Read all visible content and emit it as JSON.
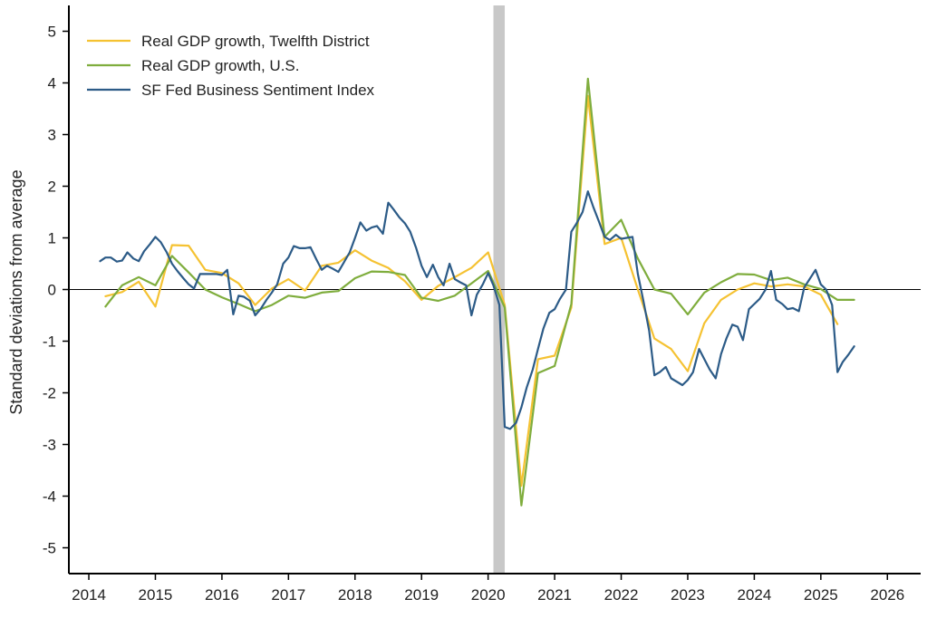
{
  "chart_data": {
    "type": "line",
    "title": "",
    "xlabel": "",
    "ylabel": "Standard deviations from average",
    "xlim": [
      2013.7,
      2026.5
    ],
    "ylim": [
      -5.5,
      5.5
    ],
    "x_ticks": [
      2014,
      2015,
      2016,
      2017,
      2018,
      2019,
      2020,
      2021,
      2022,
      2023,
      2024,
      2025,
      2026
    ],
    "y_ticks": [
      5,
      4,
      3,
      2,
      1,
      0,
      -1,
      -2,
      -3,
      -4,
      -5
    ],
    "zero_line": true,
    "grid": false,
    "legend_position": "top-left",
    "recession_band": {
      "x0": 2020.08,
      "x1": 2020.25,
      "color": "#c8c8c8"
    },
    "series": [
      {
        "name": "Real GDP growth, Twelfth District",
        "color": "#f5c232",
        "points": [
          [
            2014.25,
            -0.13
          ],
          [
            2014.5,
            -0.05
          ],
          [
            2014.75,
            0.15
          ],
          [
            2015.0,
            -0.33
          ],
          [
            2015.25,
            0.86
          ],
          [
            2015.5,
            0.85
          ],
          [
            2015.75,
            0.38
          ],
          [
            2016.0,
            0.32
          ],
          [
            2016.25,
            0.12
          ],
          [
            2016.5,
            -0.3
          ],
          [
            2016.75,
            0.02
          ],
          [
            2017.0,
            0.2
          ],
          [
            2017.25,
            -0.02
          ],
          [
            2017.5,
            0.46
          ],
          [
            2017.75,
            0.52
          ],
          [
            2018.0,
            0.76
          ],
          [
            2018.25,
            0.56
          ],
          [
            2018.5,
            0.42
          ],
          [
            2018.75,
            0.16
          ],
          [
            2019.0,
            -0.2
          ],
          [
            2019.25,
            0.07
          ],
          [
            2019.5,
            0.24
          ],
          [
            2019.75,
            0.42
          ],
          [
            2020.0,
            0.72
          ],
          [
            2020.25,
            -0.3
          ],
          [
            2020.5,
            -3.8
          ],
          [
            2020.75,
            -1.35
          ],
          [
            2021.0,
            -1.28
          ],
          [
            2021.25,
            -0.35
          ],
          [
            2021.5,
            3.75
          ],
          [
            2021.75,
            0.88
          ],
          [
            2022.0,
            1.0
          ],
          [
            2022.25,
            0.0
          ],
          [
            2022.5,
            -0.95
          ],
          [
            2022.75,
            -1.15
          ],
          [
            2023.0,
            -1.58
          ],
          [
            2023.25,
            -0.65
          ],
          [
            2023.5,
            -0.2
          ],
          [
            2023.75,
            0.0
          ],
          [
            2024.0,
            0.12
          ],
          [
            2024.25,
            0.06
          ],
          [
            2024.5,
            0.1
          ],
          [
            2024.75,
            0.06
          ],
          [
            2025.0,
            -0.1
          ],
          [
            2025.25,
            -0.67
          ]
        ]
      },
      {
        "name": "Real GDP growth, U.S.",
        "color": "#7fad3d",
        "points": [
          [
            2014.25,
            -0.33
          ],
          [
            2014.5,
            0.08
          ],
          [
            2014.75,
            0.24
          ],
          [
            2015.0,
            0.08
          ],
          [
            2015.25,
            0.65
          ],
          [
            2015.5,
            0.33
          ],
          [
            2015.75,
            0.0
          ],
          [
            2016.0,
            -0.15
          ],
          [
            2016.25,
            -0.28
          ],
          [
            2016.5,
            -0.42
          ],
          [
            2016.75,
            -0.3
          ],
          [
            2017.0,
            -0.12
          ],
          [
            2017.25,
            -0.16
          ],
          [
            2017.5,
            -0.06
          ],
          [
            2017.75,
            -0.03
          ],
          [
            2018.0,
            0.22
          ],
          [
            2018.25,
            0.35
          ],
          [
            2018.5,
            0.34
          ],
          [
            2018.75,
            0.28
          ],
          [
            2019.0,
            -0.16
          ],
          [
            2019.25,
            -0.22
          ],
          [
            2019.5,
            -0.12
          ],
          [
            2019.75,
            0.12
          ],
          [
            2020.0,
            0.36
          ],
          [
            2020.25,
            -0.35
          ],
          [
            2020.5,
            -4.18
          ],
          [
            2020.75,
            -1.62
          ],
          [
            2021.0,
            -1.48
          ],
          [
            2021.25,
            -0.28
          ],
          [
            2021.5,
            4.08
          ],
          [
            2021.75,
            1.02
          ],
          [
            2022.0,
            1.35
          ],
          [
            2022.25,
            0.6
          ],
          [
            2022.5,
            0.0
          ],
          [
            2022.75,
            -0.08
          ],
          [
            2023.0,
            -0.48
          ],
          [
            2023.25,
            -0.06
          ],
          [
            2023.5,
            0.14
          ],
          [
            2023.75,
            0.3
          ],
          [
            2024.0,
            0.29
          ],
          [
            2024.25,
            0.18
          ],
          [
            2024.5,
            0.23
          ],
          [
            2024.75,
            0.1
          ],
          [
            2025.0,
            0.01
          ],
          [
            2025.25,
            -0.2
          ],
          [
            2025.5,
            -0.2
          ]
        ]
      },
      {
        "name": "SF Fed Business Sentiment Index",
        "color": "#2c5b87",
        "points": [
          [
            2014.17,
            0.55
          ],
          [
            2014.25,
            0.62
          ],
          [
            2014.33,
            0.62
          ],
          [
            2014.42,
            0.54
          ],
          [
            2014.5,
            0.56
          ],
          [
            2014.58,
            0.72
          ],
          [
            2014.67,
            0.6
          ],
          [
            2014.75,
            0.55
          ],
          [
            2014.83,
            0.74
          ],
          [
            2014.92,
            0.88
          ],
          [
            2015.0,
            1.02
          ],
          [
            2015.08,
            0.92
          ],
          [
            2015.17,
            0.72
          ],
          [
            2015.25,
            0.5
          ],
          [
            2015.33,
            0.36
          ],
          [
            2015.42,
            0.22
          ],
          [
            2015.5,
            0.1
          ],
          [
            2015.58,
            0.02
          ],
          [
            2015.67,
            0.3
          ],
          [
            2015.75,
            0.3
          ],
          [
            2015.83,
            0.3
          ],
          [
            2015.92,
            0.3
          ],
          [
            2016.0,
            0.28
          ],
          [
            2016.08,
            0.38
          ],
          [
            2016.17,
            -0.48
          ],
          [
            2016.25,
            -0.12
          ],
          [
            2016.33,
            -0.14
          ],
          [
            2016.42,
            -0.22
          ],
          [
            2016.5,
            -0.5
          ],
          [
            2016.58,
            -0.38
          ],
          [
            2016.67,
            -0.2
          ],
          [
            2016.75,
            -0.06
          ],
          [
            2016.83,
            0.1
          ],
          [
            2016.92,
            0.5
          ],
          [
            2017.0,
            0.62
          ],
          [
            2017.08,
            0.84
          ],
          [
            2017.17,
            0.8
          ],
          [
            2017.25,
            0.8
          ],
          [
            2017.33,
            0.82
          ],
          [
            2017.42,
            0.58
          ],
          [
            2017.5,
            0.38
          ],
          [
            2017.58,
            0.46
          ],
          [
            2017.67,
            0.4
          ],
          [
            2017.75,
            0.34
          ],
          [
            2017.83,
            0.52
          ],
          [
            2017.92,
            0.72
          ],
          [
            2018.0,
            1.0
          ],
          [
            2018.08,
            1.3
          ],
          [
            2018.17,
            1.14
          ],
          [
            2018.25,
            1.2
          ],
          [
            2018.33,
            1.23
          ],
          [
            2018.42,
            1.08
          ],
          [
            2018.5,
            1.68
          ],
          [
            2018.58,
            1.55
          ],
          [
            2018.67,
            1.39
          ],
          [
            2018.75,
            1.28
          ],
          [
            2018.83,
            1.12
          ],
          [
            2018.92,
            0.8
          ],
          [
            2019.0,
            0.46
          ],
          [
            2019.08,
            0.24
          ],
          [
            2019.17,
            0.48
          ],
          [
            2019.25,
            0.24
          ],
          [
            2019.33,
            0.08
          ],
          [
            2019.42,
            0.5
          ],
          [
            2019.5,
            0.2
          ],
          [
            2019.58,
            0.14
          ],
          [
            2019.67,
            0.08
          ],
          [
            2019.75,
            -0.5
          ],
          [
            2019.83,
            -0.1
          ],
          [
            2019.92,
            0.1
          ],
          [
            2020.0,
            0.32
          ],
          [
            2020.08,
            0.08
          ],
          [
            2020.17,
            -0.3
          ],
          [
            2020.25,
            -2.66
          ],
          [
            2020.33,
            -2.7
          ],
          [
            2020.42,
            -2.58
          ],
          [
            2020.5,
            -2.28
          ],
          [
            2020.58,
            -1.9
          ],
          [
            2020.67,
            -1.55
          ],
          [
            2020.75,
            -1.15
          ],
          [
            2020.83,
            -0.76
          ],
          [
            2020.92,
            -0.45
          ],
          [
            2021.0,
            -0.38
          ],
          [
            2021.08,
            -0.18
          ],
          [
            2021.17,
            0.0
          ],
          [
            2021.25,
            1.12
          ],
          [
            2021.33,
            1.28
          ],
          [
            2021.42,
            1.5
          ],
          [
            2021.5,
            1.9
          ],
          [
            2021.58,
            1.6
          ],
          [
            2021.67,
            1.3
          ],
          [
            2021.75,
            1.02
          ],
          [
            2021.83,
            0.96
          ],
          [
            2021.92,
            1.06
          ],
          [
            2022.0,
            0.98
          ],
          [
            2022.08,
            1.0
          ],
          [
            2022.17,
            1.02
          ],
          [
            2022.25,
            0.3
          ],
          [
            2022.33,
            -0.2
          ],
          [
            2022.42,
            -0.8
          ],
          [
            2022.5,
            -1.66
          ],
          [
            2022.58,
            -1.6
          ],
          [
            2022.67,
            -1.5
          ],
          [
            2022.75,
            -1.72
          ],
          [
            2022.83,
            -1.78
          ],
          [
            2022.92,
            -1.85
          ],
          [
            2023.0,
            -1.75
          ],
          [
            2023.08,
            -1.6
          ],
          [
            2023.17,
            -1.15
          ],
          [
            2023.25,
            -1.35
          ],
          [
            2023.33,
            -1.55
          ],
          [
            2023.42,
            -1.72
          ],
          [
            2023.5,
            -1.25
          ],
          [
            2023.58,
            -0.95
          ],
          [
            2023.67,
            -0.68
          ],
          [
            2023.75,
            -0.72
          ],
          [
            2023.83,
            -0.98
          ],
          [
            2023.92,
            -0.38
          ],
          [
            2024.0,
            -0.28
          ],
          [
            2024.08,
            -0.18
          ],
          [
            2024.17,
            0.0
          ],
          [
            2024.25,
            0.36
          ],
          [
            2024.33,
            -0.2
          ],
          [
            2024.42,
            -0.28
          ],
          [
            2024.5,
            -0.38
          ],
          [
            2024.58,
            -0.36
          ],
          [
            2024.67,
            -0.42
          ],
          [
            2024.75,
            0.04
          ],
          [
            2024.83,
            0.2
          ],
          [
            2024.92,
            0.38
          ],
          [
            2025.0,
            0.1
          ],
          [
            2025.08,
            0.0
          ],
          [
            2025.17,
            -0.3
          ],
          [
            2025.25,
            -1.6
          ],
          [
            2025.33,
            -1.4
          ],
          [
            2025.42,
            -1.25
          ],
          [
            2025.5,
            -1.1
          ]
        ]
      }
    ]
  }
}
